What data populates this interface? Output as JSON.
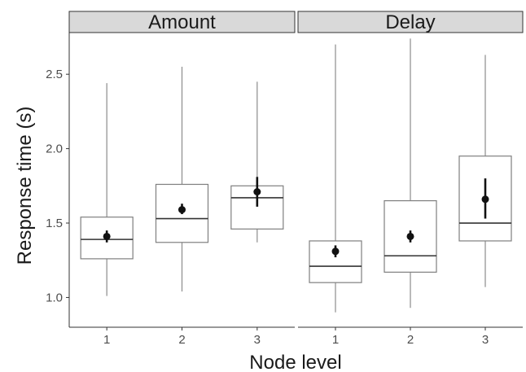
{
  "chart_data": {
    "type": "boxplot",
    "xlabel": "Node level",
    "ylabel": "Response time (s)",
    "ylim": [
      0.8,
      2.78
    ],
    "yticks": [
      1.0,
      1.5,
      2.0,
      2.5
    ],
    "ytick_labels": [
      "1.0",
      "1.5",
      "2.0",
      "2.5"
    ],
    "categories": [
      "1",
      "2",
      "3"
    ],
    "grid": false,
    "panels": [
      {
        "name": "Amount",
        "boxes": [
          {
            "x": "1",
            "min": 1.01,
            "q1": 1.26,
            "median": 1.39,
            "q3": 1.54,
            "max": 2.44,
            "mean": 1.41,
            "ci_low": 1.37,
            "ci_high": 1.45
          },
          {
            "x": "2",
            "min": 1.04,
            "q1": 1.37,
            "median": 1.53,
            "q3": 1.76,
            "max": 2.55,
            "mean": 1.59,
            "ci_low": 1.56,
            "ci_high": 1.63
          },
          {
            "x": "3",
            "min": 1.37,
            "q1": 1.46,
            "median": 1.67,
            "q3": 1.75,
            "max": 2.45,
            "mean": 1.71,
            "ci_low": 1.61,
            "ci_high": 1.81
          }
        ]
      },
      {
        "name": "Delay",
        "boxes": [
          {
            "x": "1",
            "min": 0.9,
            "q1": 1.1,
            "median": 1.21,
            "q3": 1.38,
            "max": 2.7,
            "mean": 1.31,
            "ci_low": 1.27,
            "ci_high": 1.35
          },
          {
            "x": "2",
            "min": 0.93,
            "q1": 1.17,
            "median": 1.28,
            "q3": 1.65,
            "max": 2.74,
            "mean": 1.41,
            "ci_low": 1.37,
            "ci_high": 1.45
          },
          {
            "x": "3",
            "min": 1.07,
            "q1": 1.38,
            "median": 1.5,
            "q3": 1.95,
            "max": 2.63,
            "mean": 1.66,
            "ci_low": 1.53,
            "ci_high": 1.8
          }
        ]
      }
    ]
  }
}
